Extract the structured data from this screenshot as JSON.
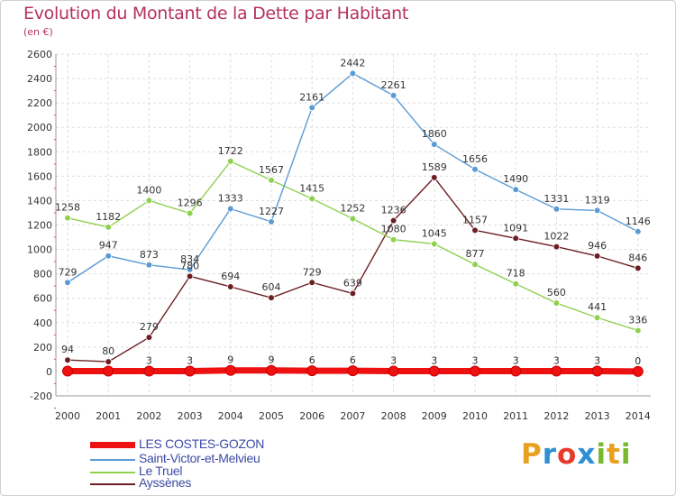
{
  "title": "Evolution du Montant de la Dette par Habitant",
  "subtitle": "(en €)",
  "logo": {
    "text": "Proxiti",
    "colors": [
      "#e8a020",
      "#2d8fd5",
      "#e83a2a",
      "#2d8fd5",
      "#7ab82e",
      "#e8a020",
      "#7ab82e"
    ]
  },
  "chart_data": {
    "type": "line",
    "x": [
      2000,
      2001,
      2002,
      2003,
      2004,
      2005,
      2006,
      2007,
      2008,
      2009,
      2010,
      2011,
      2012,
      2013,
      2014
    ],
    "ylim": [
      -200,
      2600
    ],
    "yticks": [
      -200,
      0,
      200,
      400,
      600,
      800,
      1000,
      1200,
      1400,
      1600,
      1800,
      2000,
      2200,
      2400,
      2600
    ],
    "grid": true,
    "legend_position": "bottom-left",
    "series": [
      {
        "name": "LES COSTES-GOZON",
        "color": "#ee1111",
        "values": [
          3,
          3,
          3,
          3,
          9,
          9,
          6,
          6,
          3,
          3,
          3,
          3,
          3,
          3,
          0
        ],
        "labels": [
          "",
          "",
          "3",
          "3",
          "9",
          "9",
          "6",
          "6",
          "3",
          "3",
          "3",
          "3",
          "3",
          "3",
          "0"
        ]
      },
      {
        "name": "Saint-Victor-et-Melvieu",
        "color": "#5b9bd5",
        "values": [
          729,
          947,
          873,
          834,
          1333,
          1227,
          2161,
          2442,
          2261,
          1860,
          1656,
          1490,
          1331,
          1319,
          1146
        ]
      },
      {
        "name": "Le Truel",
        "color": "#8fd14f",
        "values": [
          1258,
          1182,
          1400,
          1296,
          1722,
          1567,
          1415,
          1252,
          1080,
          1045,
          877,
          718,
          560,
          441,
          336
        ]
      },
      {
        "name": "Ayssènes",
        "color": "#6b1f24",
        "values": [
          94,
          80,
          279,
          780,
          694,
          604,
          729,
          639,
          1236,
          1589,
          1157,
          1091,
          1022,
          946,
          846
        ]
      }
    ]
  }
}
